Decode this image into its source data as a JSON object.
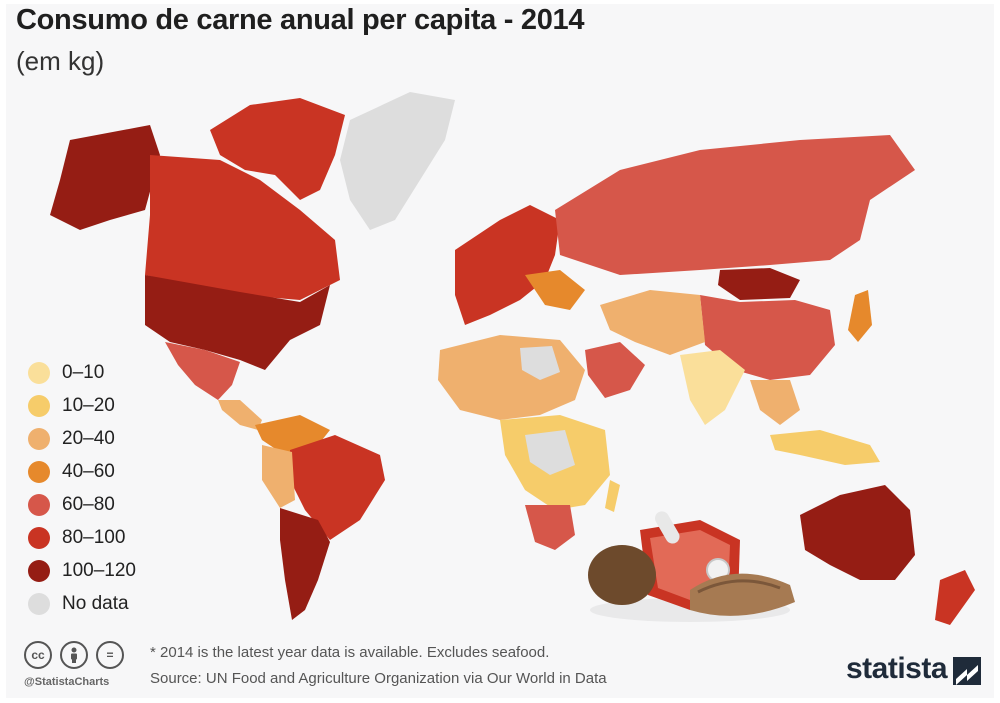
{
  "header": {
    "title": "Consumo de carne anual per capita - 2014",
    "subtitle": "(em kg)"
  },
  "legend": {
    "items": [
      {
        "label": "0–10",
        "color": "#fadf9a"
      },
      {
        "label": "10–20",
        "color": "#f6cc6a"
      },
      {
        "label": "20–40",
        "color": "#efb06e"
      },
      {
        "label": "40–60",
        "color": "#e6892c"
      },
      {
        "label": "60–80",
        "color": "#d6574a"
      },
      {
        "label": "80–100",
        "color": "#c93423"
      },
      {
        "label": "100–120",
        "color": "#951d14"
      },
      {
        "label": "No data",
        "color": "#dddddd"
      }
    ]
  },
  "footer": {
    "note": "* 2014 is the latest year data is available. Excludes seafood.",
    "source": "Source: UN Food and Agriculture Organization via Our World in Data",
    "handle": "@StatistaCharts",
    "cc_icons": [
      "cc",
      "by",
      "="
    ],
    "brand": "statista"
  }
}
